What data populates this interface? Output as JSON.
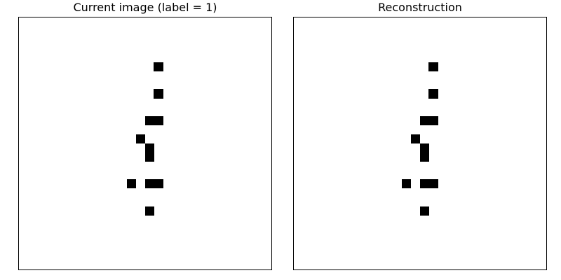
{
  "panels": [
    {
      "title": "Current image (label = 1)",
      "grid_size": 28,
      "on_pixels": [
        [
          5,
          15
        ],
        [
          8,
          15
        ],
        [
          11,
          14
        ],
        [
          11,
          15
        ],
        [
          13,
          13
        ],
        [
          14,
          14
        ],
        [
          15,
          14
        ],
        [
          18,
          12
        ],
        [
          18,
          14
        ],
        [
          18,
          15
        ],
        [
          21,
          14
        ]
      ]
    },
    {
      "title": "Reconstruction",
      "grid_size": 28,
      "on_pixels": [
        [
          5,
          15
        ],
        [
          8,
          15
        ],
        [
          11,
          14
        ],
        [
          11,
          15
        ],
        [
          13,
          13
        ],
        [
          14,
          14
        ],
        [
          15,
          14
        ],
        [
          18,
          12
        ],
        [
          18,
          14
        ],
        [
          18,
          15
        ],
        [
          21,
          14
        ]
      ]
    }
  ],
  "colors": {
    "pixel_on": "#000000",
    "background": "#ffffff",
    "border": "#000000"
  }
}
